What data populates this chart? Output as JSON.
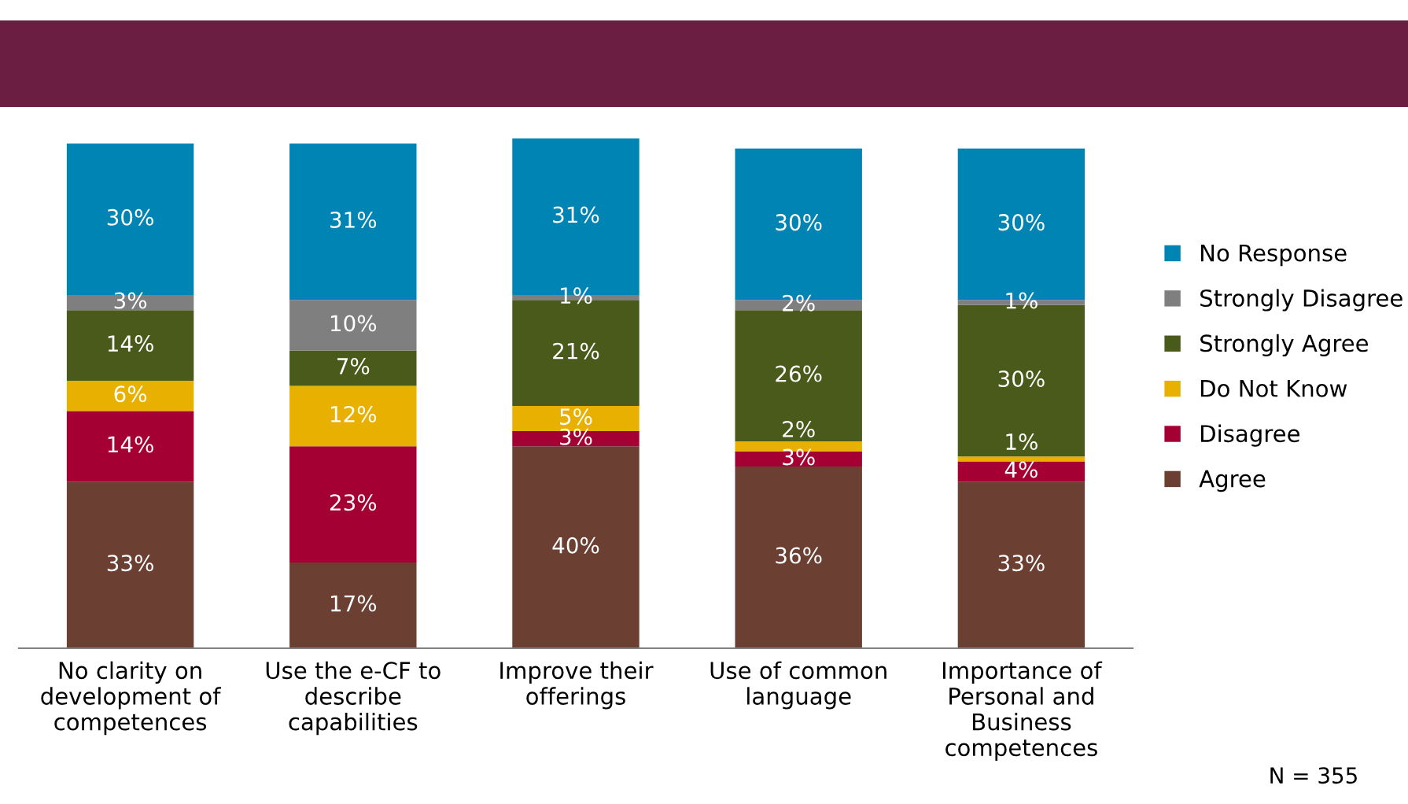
{
  "chart_data": {
    "type": "bar",
    "stacked": true,
    "categories": [
      "No clarity on development of competences",
      "Use the e-CF to describe capabilities",
      "Improve their offerings",
      "Use of common language",
      "Importance of Personal and Business competences"
    ],
    "series": [
      {
        "name": "Agree",
        "color": "#6b3f32",
        "values": [
          33,
          17,
          40,
          36,
          33
        ],
        "value_labels": [
          "33%",
          "17%",
          "40%",
          "36%",
          "33%"
        ]
      },
      {
        "name": "Disagree",
        "color": "#a50034",
        "values": [
          14,
          23,
          3,
          3,
          4
        ],
        "value_labels": [
          "14%",
          "23%",
          "3%",
          "3%",
          "4%"
        ]
      },
      {
        "name": "Do Not Know",
        "color": "#e8b000",
        "values": [
          6,
          12,
          5,
          2,
          1
        ],
        "value_labels": [
          "6%",
          "12%",
          "5%",
          "2%",
          "1%"
        ]
      },
      {
        "name": "Strongly Agree",
        "color": "#4a5a1a",
        "values": [
          14,
          7,
          21,
          26,
          30
        ],
        "value_labels": [
          "14%",
          "7%",
          "21%",
          "26%",
          "30%"
        ]
      },
      {
        "name": "Strongly Disagree",
        "color": "#7f7f7f",
        "values": [
          3,
          10,
          1,
          2,
          1
        ],
        "value_labels": [
          "3%",
          "10%",
          "1%",
          "2%",
          "1%"
        ]
      },
      {
        "name": "No Response",
        "color": "#0084b4",
        "values": [
          30,
          31,
          31,
          30,
          30
        ],
        "value_labels": [
          "30%",
          "31%",
          "31%",
          "30%",
          "30%"
        ]
      }
    ],
    "ylim": [
      0,
      101
    ],
    "legend": "right",
    "grid": false,
    "tick_labels": "x",
    "annotations": [
      "N = 355"
    ]
  }
}
